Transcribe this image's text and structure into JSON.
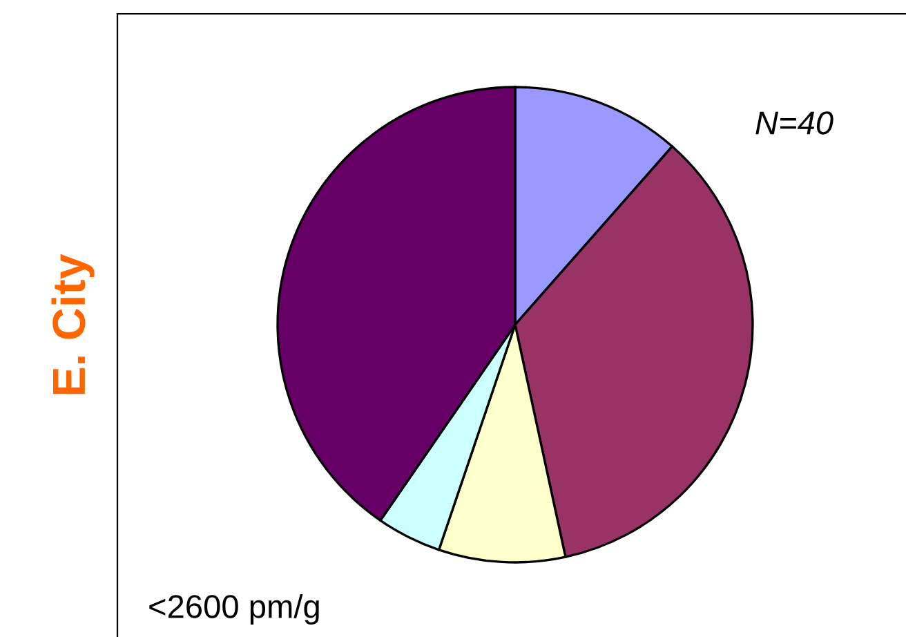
{
  "chart_data": {
    "type": "pie",
    "ylabel": "E. City",
    "categories": [
      null,
      null,
      null,
      null,
      null
    ],
    "values": [
      11.5,
      35.1,
      8.6,
      4.4,
      40.4
    ],
    "colors": [
      "#9999ff",
      "#993366",
      "#ffffcc",
      "#ccffff",
      "#660066"
    ],
    "annotations": [
      "N=40",
      "<2600 pm/g"
    ]
  }
}
